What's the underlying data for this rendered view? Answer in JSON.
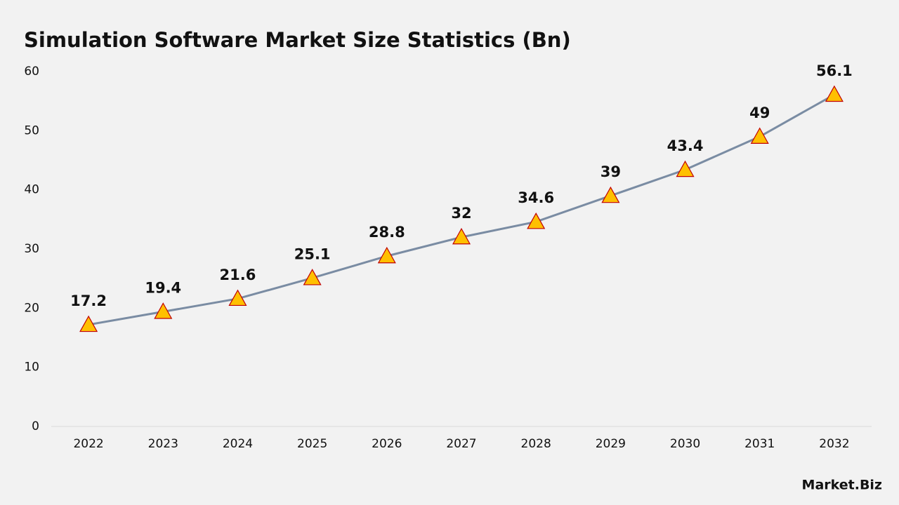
{
  "chart_data": {
    "type": "line",
    "title": "Simulation Software Market Size Statistics (Bn)",
    "categories": [
      "2022",
      "2023",
      "2024",
      "2025",
      "2026",
      "2027",
      "2028",
      "2029",
      "2030",
      "2031",
      "2032"
    ],
    "values": [
      17.2,
      19.4,
      21.6,
      25.1,
      28.8,
      32,
      34.6,
      39,
      43.4,
      49,
      56.1
    ],
    "color": "#7a8ca3",
    "marker_color": "#ffc000",
    "marker_edge_color": "#c00000",
    "ylim": [
      0,
      60
    ],
    "yticks": [
      0,
      10,
      20,
      30,
      40,
      50,
      60
    ],
    "grid": false
  },
  "brand": "Market.Biz"
}
